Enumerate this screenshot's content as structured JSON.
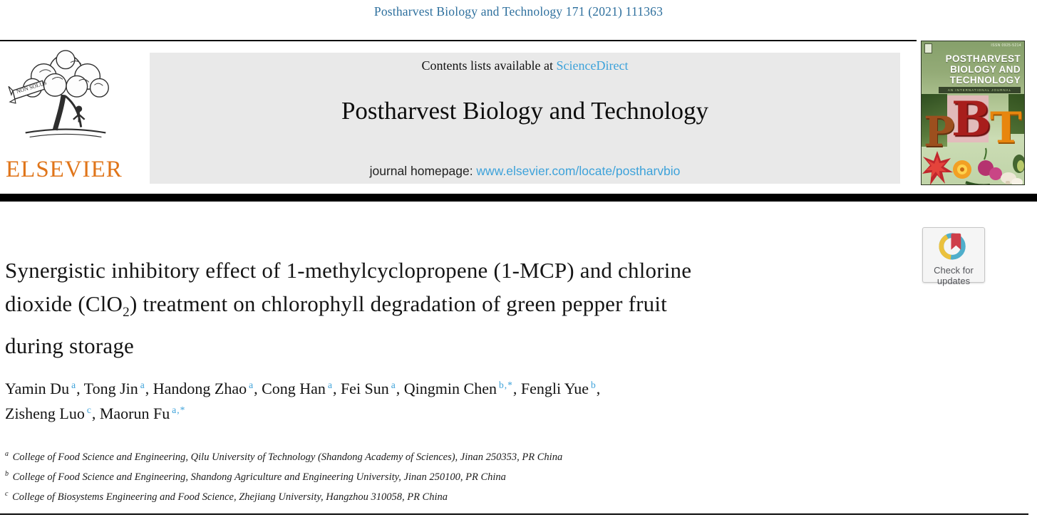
{
  "page": {
    "citation": "Postharvest Biology and Technology 171 (2021) 111363"
  },
  "publisher": {
    "name": "ELSEVIER",
    "motto": "NON SOLUS"
  },
  "banner": {
    "contents_prefix": "Contents lists available at ",
    "sciencedirect_label": "ScienceDirect",
    "journal_title": "Postharvest Biology and Technology",
    "homepage_prefix": "journal homepage: ",
    "homepage_url": "www.elsevier.com/locate/postharvbio"
  },
  "cover": {
    "issn": "ISSN 0925-5214",
    "title_lines": [
      "POSTHARVEST",
      "BIOLOGY AND",
      "TECHNOLOGY"
    ],
    "subtitle": "AN INTERNATIONAL JOURNAL",
    "initials": [
      "P",
      "B",
      "T"
    ]
  },
  "check_badge": {
    "line1": "Check for",
    "line2": "updates"
  },
  "article": {
    "title_line1": "Synergistic inhibitory effect of 1-methylcyclopropene (1-MCP) and chlorine",
    "title_line2_pre": "dioxide (ClO",
    "title_line2_sub": "2",
    "title_line2_post": ") treatment on chlorophyll degradation of green pepper fruit",
    "title_line3": "during storage"
  },
  "authors": [
    {
      "name": "Yamin Du",
      "sup": "a",
      "sep": ", "
    },
    {
      "name": "Tong Jin",
      "sup": "a",
      "sep": ", "
    },
    {
      "name": "Handong Zhao",
      "sup": "a",
      "sep": ", "
    },
    {
      "name": "Cong Han",
      "sup": "a",
      "sep": ", "
    },
    {
      "name": "Fei Sun",
      "sup": "a",
      "sep": ", "
    },
    {
      "name": "Qingmin Chen",
      "sup": "b,*",
      "sep": ", "
    },
    {
      "name": "Fengli Yue",
      "sup": "b",
      "sep": ",",
      "br": true
    },
    {
      "name": "Zisheng Luo",
      "sup": "c",
      "sep": ", "
    },
    {
      "name": "Maorun Fu",
      "sup": "a,*",
      "sep": ""
    }
  ],
  "affiliations": [
    {
      "sup": "a",
      "text": "College of Food Science and Engineering, Qilu University of Technology (Shandong Academy of Sciences), Jinan 250353, PR China"
    },
    {
      "sup": "b",
      "text": "College of Food Science and Engineering, Shandong Agriculture and Engineering University, Jinan 250100, PR China"
    },
    {
      "sup": "c",
      "text": "College of Biosystems Engineering and Food Science, Zhejiang University, Hangzhou 310058, PR China"
    }
  ],
  "colors": {
    "citation_blue": "#2d6f9d",
    "link_blue": "#3da2da",
    "elsevier_orange": "#e0751a",
    "banner_gray": "#e9e9e9",
    "crossmark_blue": "#4FAECB",
    "crossmark_yellow": "#EBC13D",
    "crossmark_red": "#CE3E4A",
    "cover_green": "#8aa471",
    "rule_black": "#000000"
  }
}
